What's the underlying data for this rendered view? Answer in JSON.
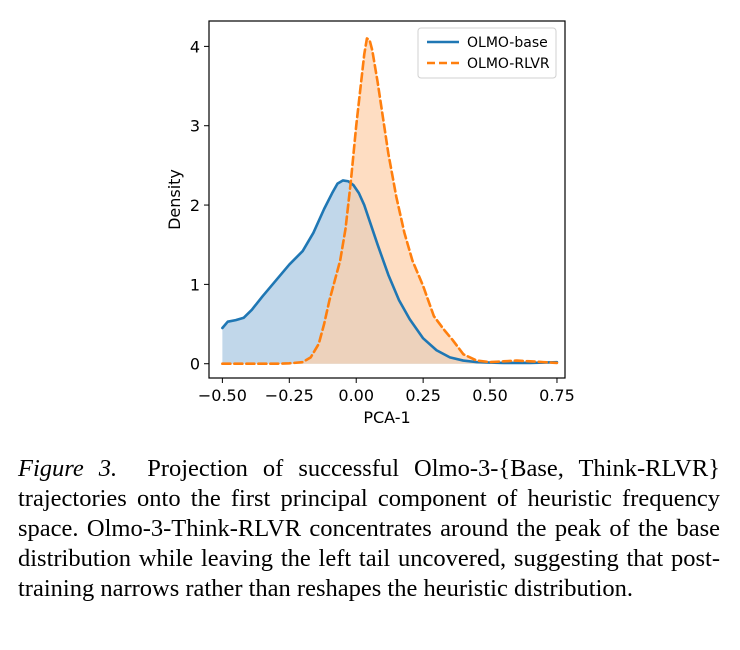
{
  "chart_data": {
    "type": "area",
    "title": "",
    "xlabel": "PCA-1",
    "ylabel": "Density",
    "xlim": [
      -0.55,
      0.78
    ],
    "ylim": [
      -0.18,
      4.32
    ],
    "xticks": [
      -0.5,
      -0.25,
      0.0,
      0.25,
      0.5,
      0.75
    ],
    "xtick_labels": [
      "−0.50",
      "−0.25",
      "0.00",
      "0.25",
      "0.50",
      "0.75"
    ],
    "yticks": [
      0,
      1,
      2,
      3,
      4
    ],
    "ytick_labels": [
      "0",
      "1",
      "2",
      "3",
      "4"
    ],
    "grid": false,
    "legend_position": "top-right",
    "series": [
      {
        "name": "OLMO-base",
        "color": "#1f77b4",
        "fill": "#a9c8e2",
        "line_style": "solid",
        "x": [
          -0.5,
          -0.48,
          -0.45,
          -0.42,
          -0.39,
          -0.35,
          -0.3,
          -0.25,
          -0.2,
          -0.16,
          -0.12,
          -0.09,
          -0.07,
          -0.05,
          -0.03,
          -0.01,
          0.01,
          0.03,
          0.05,
          0.08,
          0.12,
          0.16,
          0.2,
          0.25,
          0.3,
          0.35,
          0.4,
          0.45,
          0.5,
          0.55,
          0.6,
          0.65,
          0.7,
          0.75
        ],
        "y": [
          0.45,
          0.53,
          0.55,
          0.58,
          0.68,
          0.85,
          1.05,
          1.25,
          1.42,
          1.65,
          1.95,
          2.15,
          2.27,
          2.31,
          2.3,
          2.25,
          2.15,
          2.0,
          1.8,
          1.5,
          1.12,
          0.8,
          0.56,
          0.32,
          0.17,
          0.08,
          0.04,
          0.02,
          0.015,
          0.01,
          0.01,
          0.01,
          0.015,
          0.02
        ]
      },
      {
        "name": "OLMO-RLVR",
        "color": "#ff7f0e",
        "fill": "#fdd0ab",
        "line_style": "dashed",
        "x": [
          -0.5,
          -0.4,
          -0.3,
          -0.25,
          -0.2,
          -0.17,
          -0.14,
          -0.12,
          -0.1,
          -0.08,
          -0.06,
          -0.04,
          -0.02,
          0.0,
          0.02,
          0.03,
          0.04,
          0.05,
          0.06,
          0.08,
          0.1,
          0.12,
          0.15,
          0.18,
          0.21,
          0.25,
          0.29,
          0.33,
          0.36,
          0.4,
          0.45,
          0.5,
          0.55,
          0.6,
          0.65,
          0.7,
          0.75
        ],
        "y": [
          0.0,
          0.0,
          0.0,
          0.005,
          0.02,
          0.08,
          0.25,
          0.5,
          0.8,
          1.05,
          1.3,
          1.7,
          2.3,
          3.0,
          3.6,
          3.9,
          4.1,
          4.08,
          3.95,
          3.55,
          3.1,
          2.65,
          2.1,
          1.65,
          1.3,
          0.98,
          0.6,
          0.42,
          0.3,
          0.12,
          0.04,
          0.02,
          0.03,
          0.04,
          0.03,
          0.02,
          0.01
        ]
      }
    ]
  },
  "caption": {
    "label": "Figure 3.",
    "text": "Projection of successful Olmo-3-{Base, Think-RLVR} trajectories onto the first principal component of heuristic frequency space.  Olmo-3-Think-RLVR concentrates around the peak of the base distribution while leaving the left tail uncovered, suggesting that post-training narrows rather than reshapes the heuristic distribution."
  }
}
